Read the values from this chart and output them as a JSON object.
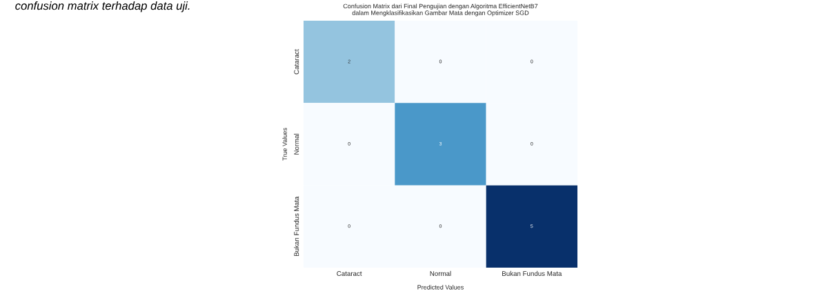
{
  "chart_data": {
    "type": "heatmap",
    "title": "Confusion Matrix dari Final Pengujian dengan Algoritma EfficientNetB7\ndalam Mengklasifikasikan Gambar Mata dengan Optimizer SGD",
    "xlabel": "Predicted Values",
    "ylabel": "True Values",
    "categories": [
      "Cataract",
      "Normal",
      "Bukan Fundus Mata"
    ],
    "y_categories": [
      "Cataract",
      "Normal",
      "Bukan Fundus Mata"
    ],
    "cells": [
      [
        2,
        0,
        0
      ],
      [
        0,
        3,
        0
      ],
      [
        0,
        0,
        5
      ]
    ],
    "data_labels": true,
    "annotations": [
      "confusion matrix terhadap data uji."
    ]
  }
}
